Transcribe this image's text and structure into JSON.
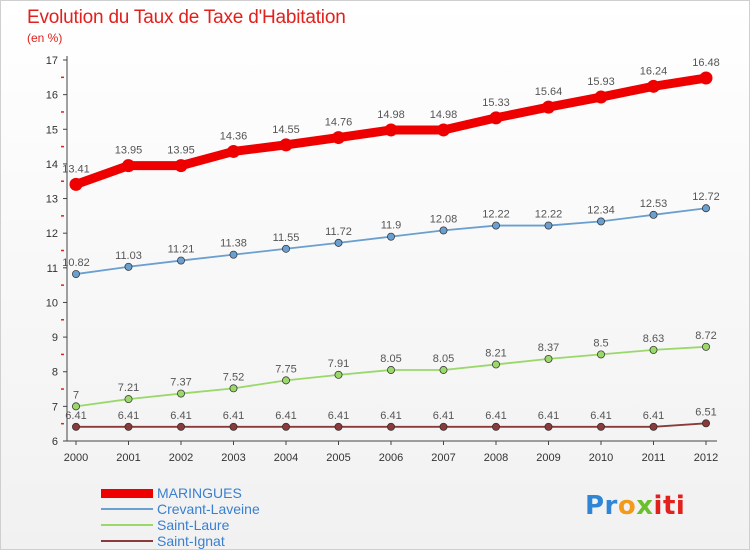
{
  "title": "Evolution du Taux de Taxe d'Habitation",
  "unit": "(en %)",
  "logo": {
    "text": "Proxiti",
    "parts": [
      "Pr",
      "o",
      "x",
      "iti"
    ]
  },
  "chart_data": {
    "type": "line",
    "title": "Evolution du Taux de Taxe d'Habitation",
    "ylabel": "(en %)",
    "xlabel": "",
    "ylim": [
      6,
      17
    ],
    "yticks": [
      6,
      7,
      8,
      9,
      10,
      11,
      12,
      13,
      14,
      15,
      16,
      17
    ],
    "grid": false,
    "legend_position": "bottom-left",
    "x": [
      "2000",
      "2001",
      "2002",
      "2003",
      "2004",
      "2005",
      "2006",
      "2007",
      "2008",
      "2009",
      "2010",
      "2011",
      "2012"
    ],
    "series": [
      {
        "name": "MARINGUES",
        "color": "#ee0000",
        "emphasis": true,
        "values": [
          13.41,
          13.95,
          13.95,
          14.36,
          14.55,
          14.76,
          14.98,
          14.98,
          15.33,
          15.64,
          15.93,
          16.24,
          16.48
        ],
        "labels": [
          "13.41",
          "13.95",
          "13.95",
          "14.36",
          "14.55",
          "14.76",
          "14.98",
          "14.98",
          "15.33",
          "15.64",
          "15.93",
          "16.24",
          "16.48"
        ]
      },
      {
        "name": "Crevant-Laveine",
        "color": "#6a9fcf",
        "emphasis": false,
        "values": [
          10.82,
          11.03,
          11.21,
          11.38,
          11.55,
          11.72,
          11.9,
          12.08,
          12.22,
          12.22,
          12.34,
          12.53,
          12.72
        ],
        "labels": [
          "10.82",
          "11.03",
          "11.21",
          "11.38",
          "11.55",
          "11.72",
          "11.9",
          "12.08",
          "12.22",
          "12.22",
          "12.34",
          "12.53",
          "12.72"
        ]
      },
      {
        "name": "Saint-Laure",
        "color": "#9ad86a",
        "emphasis": false,
        "values": [
          7,
          7.21,
          7.37,
          7.52,
          7.75,
          7.91,
          8.05,
          8.05,
          8.21,
          8.37,
          8.5,
          8.63,
          8.72
        ],
        "labels": [
          "7",
          "7.21",
          "7.37",
          "7.52",
          "7.75",
          "7.91",
          "8.05",
          "8.05",
          "8.21",
          "8.37",
          "8.5",
          "8.63",
          "8.72"
        ]
      },
      {
        "name": "Saint-Ignat",
        "color": "#8a3a3a",
        "emphasis": false,
        "values": [
          6.41,
          6.41,
          6.41,
          6.41,
          6.41,
          6.41,
          6.41,
          6.41,
          6.41,
          6.41,
          6.41,
          6.41,
          6.51
        ],
        "labels": [
          "6.41",
          "6.41",
          "6.41",
          "6.41",
          "6.41",
          "6.41",
          "6.41",
          "6.41",
          "6.41",
          "6.41",
          "6.41",
          "6.41",
          "6.51"
        ]
      }
    ]
  }
}
